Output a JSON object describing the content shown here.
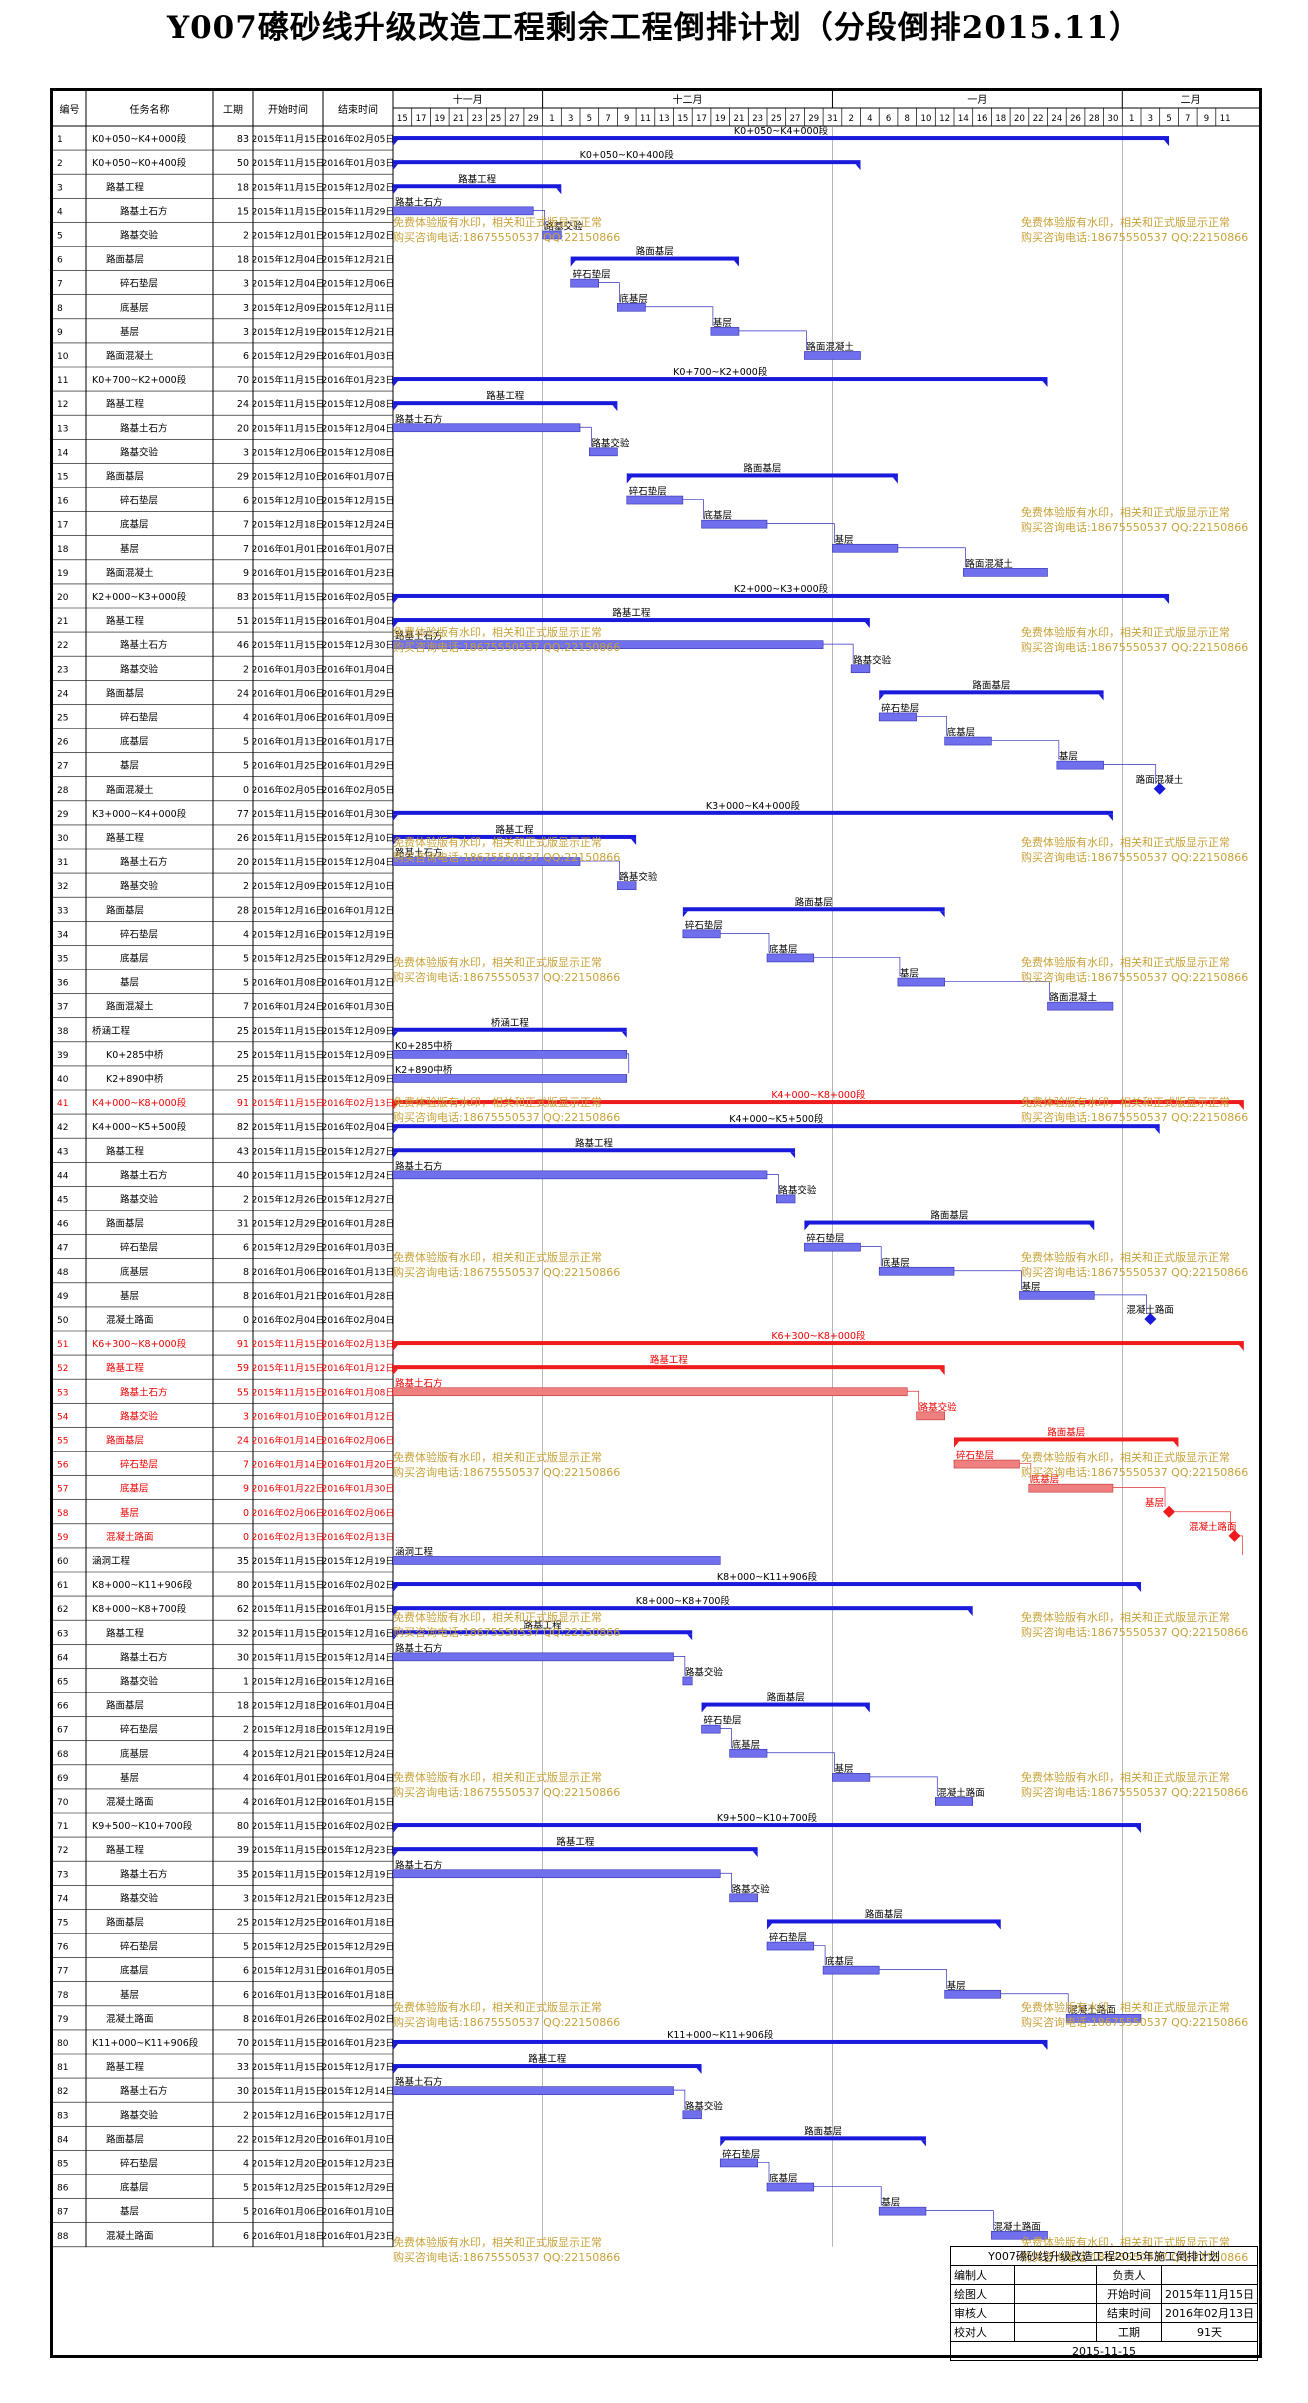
{
  "title": "Y007礤砂线升级改造工程剩余工程倒排计划（分段倒排2015.11）",
  "headers": {
    "id": "编号",
    "name": "任务名称",
    "dur": "工期",
    "start": "开始时间",
    "end": "结束时间"
  },
  "months": [
    {
      "label": "十一月",
      "date": "2015-11-01"
    },
    {
      "label": "十二月",
      "date": "2015-12-01"
    },
    {
      "label": "一月",
      "date": "2016-01-01"
    },
    {
      "label": "二月",
      "date": "2016-02-01"
    }
  ],
  "day_labels": [
    "15",
    "17",
    "19",
    "21",
    "23",
    "25",
    "27",
    "29",
    "1",
    "3",
    "5",
    "7",
    "9",
    "11",
    "13",
    "15",
    "17",
    "19",
    "21",
    "23",
    "25",
    "27",
    "29",
    "31",
    "2",
    "4",
    "6",
    "8",
    "10",
    "12",
    "14",
    "16",
    "18",
    "20",
    "22",
    "24",
    "26",
    "28",
    "30",
    "1",
    "3",
    "5",
    "7",
    "9",
    "11"
  ],
  "watermark": {
    "line1": "免费体验版有水印，相关和正式版显示正常",
    "line2": "购买咨询电话:18675550537 QQ:22150866"
  },
  "colors": {
    "summary": "#1a1adc",
    "task": "#7070ee",
    "summary_red": "#ee1c1c",
    "task_red": "#f08080",
    "watermark": "#c8a23a"
  },
  "tasks": [
    {
      "id": "1",
      "name": "K0+050~K4+000段",
      "indent": 0,
      "type": "summary",
      "dur": "83",
      "start": "2015年11月15日",
      "end": "2016年02月05日",
      "red": false
    },
    {
      "id": "2",
      "name": "K0+050~K0+400段",
      "indent": 0,
      "type": "summary",
      "dur": "50",
      "start": "2015年11月15日",
      "end": "2016年01月03日",
      "red": false
    },
    {
      "id": "3",
      "name": "路基工程",
      "indent": 1,
      "type": "summary",
      "dur": "18",
      "start": "2015年11月15日",
      "end": "2015年12月02日",
      "red": false
    },
    {
      "id": "4",
      "name": "路基土石方",
      "indent": 2,
      "type": "task",
      "dur": "15",
      "start": "2015年11月15日",
      "end": "2015年11月29日",
      "red": false
    },
    {
      "id": "5",
      "name": "路基交验",
      "indent": 2,
      "type": "task",
      "dur": "2",
      "start": "2015年12月01日",
      "end": "2015年12月02日",
      "red": false
    },
    {
      "id": "6",
      "name": "路面基层",
      "indent": 1,
      "type": "summary",
      "dur": "18",
      "start": "2015年12月04日",
      "end": "2015年12月21日",
      "red": false
    },
    {
      "id": "7",
      "name": "碎石垫层",
      "indent": 2,
      "type": "task",
      "dur": "3",
      "start": "2015年12月04日",
      "end": "2015年12月06日",
      "red": false
    },
    {
      "id": "8",
      "name": "底基层",
      "indent": 2,
      "type": "task",
      "dur": "3",
      "start": "2015年12月09日",
      "end": "2015年12月11日",
      "red": false
    },
    {
      "id": "9",
      "name": "基层",
      "indent": 2,
      "type": "task",
      "dur": "3",
      "start": "2015年12月19日",
      "end": "2015年12月21日",
      "red": false
    },
    {
      "id": "10",
      "name": "路面混凝土",
      "indent": 1,
      "type": "task",
      "dur": "6",
      "start": "2015年12月29日",
      "end": "2016年01月03日",
      "red": false
    },
    {
      "id": "11",
      "name": "K0+700~K2+000段",
      "indent": 0,
      "type": "summary",
      "dur": "70",
      "start": "2015年11月15日",
      "end": "2016年01月23日",
      "red": false
    },
    {
      "id": "12",
      "name": "路基工程",
      "indent": 1,
      "type": "summary",
      "dur": "24",
      "start": "2015年11月15日",
      "end": "2015年12月08日",
      "red": false
    },
    {
      "id": "13",
      "name": "路基土石方",
      "indent": 2,
      "type": "task",
      "dur": "20",
      "start": "2015年11月15日",
      "end": "2015年12月04日",
      "red": false
    },
    {
      "id": "14",
      "name": "路基交验",
      "indent": 2,
      "type": "task",
      "dur": "3",
      "start": "2015年12月06日",
      "end": "2015年12月08日",
      "red": false
    },
    {
      "id": "15",
      "name": "路面基层",
      "indent": 1,
      "type": "summary",
      "dur": "29",
      "start": "2015年12月10日",
      "end": "2016年01月07日",
      "red": false
    },
    {
      "id": "16",
      "name": "碎石垫层",
      "indent": 2,
      "type": "task",
      "dur": "6",
      "start": "2015年12月10日",
      "end": "2015年12月15日",
      "red": false
    },
    {
      "id": "17",
      "name": "底基层",
      "indent": 2,
      "type": "task",
      "dur": "7",
      "start": "2015年12月18日",
      "end": "2015年12月24日",
      "red": false
    },
    {
      "id": "18",
      "name": "基层",
      "indent": 2,
      "type": "task",
      "dur": "7",
      "start": "2016年01月01日",
      "end": "2016年01月07日",
      "red": false
    },
    {
      "id": "19",
      "name": "路面混凝土",
      "indent": 1,
      "type": "task",
      "dur": "9",
      "start": "2016年01月15日",
      "end": "2016年01月23日",
      "red": false
    },
    {
      "id": "20",
      "name": "K2+000~K3+000段",
      "indent": 0,
      "type": "summary",
      "dur": "83",
      "start": "2015年11月15日",
      "end": "2016年02月05日",
      "red": false
    },
    {
      "id": "21",
      "name": "路基工程",
      "indent": 1,
      "type": "summary",
      "dur": "51",
      "start": "2015年11月15日",
      "end": "2016年01月04日",
      "red": false
    },
    {
      "id": "22",
      "name": "路基土石方",
      "indent": 2,
      "type": "task",
      "dur": "46",
      "start": "2015年11月15日",
      "end": "2015年12月30日",
      "red": false
    },
    {
      "id": "23",
      "name": "路基交验",
      "indent": 2,
      "type": "task",
      "dur": "2",
      "start": "2016年01月03日",
      "end": "2016年01月04日",
      "red": false
    },
    {
      "id": "24",
      "name": "路面基层",
      "indent": 1,
      "type": "summary",
      "dur": "24",
      "start": "2016年01月06日",
      "end": "2016年01月29日",
      "red": false
    },
    {
      "id": "25",
      "name": "碎石垫层",
      "indent": 2,
      "type": "task",
      "dur": "4",
      "start": "2016年01月06日",
      "end": "2016年01月09日",
      "red": false
    },
    {
      "id": "26",
      "name": "底基层",
      "indent": 2,
      "type": "task",
      "dur": "5",
      "start": "2016年01月13日",
      "end": "2016年01月17日",
      "red": false
    },
    {
      "id": "27",
      "name": "基层",
      "indent": 2,
      "type": "task",
      "dur": "5",
      "start": "2016年01月25日",
      "end": "2016年01月29日",
      "red": false
    },
    {
      "id": "28",
      "name": "路面混凝土",
      "indent": 1,
      "type": "milestone",
      "dur": "0",
      "start": "2016年02月05日",
      "end": "2016年02月05日",
      "red": false
    },
    {
      "id": "29",
      "name": "K3+000~K4+000段",
      "indent": 0,
      "type": "summary",
      "dur": "77",
      "start": "2015年11月15日",
      "end": "2016年01月30日",
      "red": false
    },
    {
      "id": "30",
      "name": "路基工程",
      "indent": 1,
      "type": "summary",
      "dur": "26",
      "start": "2015年11月15日",
      "end": "2015年12月10日",
      "red": false
    },
    {
      "id": "31",
      "name": "路基土石方",
      "indent": 2,
      "type": "task",
      "dur": "20",
      "start": "2015年11月15日",
      "end": "2015年12月04日",
      "red": false
    },
    {
      "id": "32",
      "name": "路基交验",
      "indent": 2,
      "type": "task",
      "dur": "2",
      "start": "2015年12月09日",
      "end": "2015年12月10日",
      "red": false
    },
    {
      "id": "33",
      "name": "路面基层",
      "indent": 1,
      "type": "summary",
      "dur": "28",
      "start": "2015年12月16日",
      "end": "2016年01月12日",
      "red": false
    },
    {
      "id": "34",
      "name": "碎石垫层",
      "indent": 2,
      "type": "task",
      "dur": "4",
      "start": "2015年12月16日",
      "end": "2015年12月19日",
      "red": false
    },
    {
      "id": "35",
      "name": "底基层",
      "indent": 2,
      "type": "task",
      "dur": "5",
      "start": "2015年12月25日",
      "end": "2015年12月29日",
      "red": false
    },
    {
      "id": "36",
      "name": "基层",
      "indent": 2,
      "type": "task",
      "dur": "5",
      "start": "2016年01月08日",
      "end": "2016年01月12日",
      "red": false
    },
    {
      "id": "37",
      "name": "路面混凝土",
      "indent": 1,
      "type": "task",
      "dur": "7",
      "start": "2016年01月24日",
      "end": "2016年01月30日",
      "red": false
    },
    {
      "id": "38",
      "name": "桥涵工程",
      "indent": 0,
      "type": "summary",
      "dur": "25",
      "start": "2015年11月15日",
      "end": "2015年12月09日",
      "red": false
    },
    {
      "id": "39",
      "name": "K0+285中桥",
      "indent": 1,
      "type": "task",
      "dur": "25",
      "start": "2015年11月15日",
      "end": "2015年12月09日",
      "red": false
    },
    {
      "id": "40",
      "name": "K2+890中桥",
      "indent": 1,
      "type": "task",
      "dur": "25",
      "start": "2015年11月15日",
      "end": "2015年12月09日",
      "red": false
    },
    {
      "id": "41",
      "name": "K4+000~K8+000段",
      "indent": 0,
      "type": "summary",
      "dur": "91",
      "start": "2015年11月15日",
      "end": "2016年02月13日",
      "red": true
    },
    {
      "id": "42",
      "name": "K4+000~K5+500段",
      "indent": 0,
      "type": "summary",
      "dur": "82",
      "start": "2015年11月15日",
      "end": "2016年02月04日",
      "red": false
    },
    {
      "id": "43",
      "name": "路基工程",
      "indent": 1,
      "type": "summary",
      "dur": "43",
      "start": "2015年11月15日",
      "end": "2015年12月27日",
      "red": false
    },
    {
      "id": "44",
      "name": "路基土石方",
      "indent": 2,
      "type": "task",
      "dur": "40",
      "start": "2015年11月15日",
      "end": "2015年12月24日",
      "red": false
    },
    {
      "id": "45",
      "name": "路基交验",
      "indent": 2,
      "type": "task",
      "dur": "2",
      "start": "2015年12月26日",
      "end": "2015年12月27日",
      "red": false
    },
    {
      "id": "46",
      "name": "路面基层",
      "indent": 1,
      "type": "summary",
      "dur": "31",
      "start": "2015年12月29日",
      "end": "2016年01月28日",
      "red": false
    },
    {
      "id": "47",
      "name": "碎石垫层",
      "indent": 2,
      "type": "task",
      "dur": "6",
      "start": "2015年12月29日",
      "end": "2016年01月03日",
      "red": false
    },
    {
      "id": "48",
      "name": "底基层",
      "indent": 2,
      "type": "task",
      "dur": "8",
      "start": "2016年01月06日",
      "end": "2016年01月13日",
      "red": false
    },
    {
      "id": "49",
      "name": "基层",
      "indent": 2,
      "type": "task",
      "dur": "8",
      "start": "2016年01月21日",
      "end": "2016年01月28日",
      "red": false
    },
    {
      "id": "50",
      "name": "混凝土路面",
      "indent": 1,
      "type": "milestone",
      "dur": "0",
      "start": "2016年02月04日",
      "end": "2016年02月04日",
      "red": false
    },
    {
      "id": "51",
      "name": "K6+300~K8+000段",
      "indent": 0,
      "type": "summary",
      "dur": "91",
      "start": "2015年11月15日",
      "end": "2016年02月13日",
      "red": true
    },
    {
      "id": "52",
      "name": "路基工程",
      "indent": 1,
      "type": "summary",
      "dur": "59",
      "start": "2015年11月15日",
      "end": "2016年01月12日",
      "red": true
    },
    {
      "id": "53",
      "name": "路基土石方",
      "indent": 2,
      "type": "task",
      "dur": "55",
      "start": "2015年11月15日",
      "end": "2016年01月08日",
      "red": true
    },
    {
      "id": "54",
      "name": "路基交验",
      "indent": 2,
      "type": "task",
      "dur": "3",
      "start": "2016年01月10日",
      "end": "2016年01月12日",
      "red": true
    },
    {
      "id": "55",
      "name": "路面基层",
      "indent": 1,
      "type": "summary",
      "dur": "24",
      "start": "2016年01月14日",
      "end": "2016年02月06日",
      "red": true
    },
    {
      "id": "56",
      "name": "碎石垫层",
      "indent": 2,
      "type": "task",
      "dur": "7",
      "start": "2016年01月14日",
      "end": "2016年01月20日",
      "red": true
    },
    {
      "id": "57",
      "name": "底基层",
      "indent": 2,
      "type": "task",
      "dur": "9",
      "start": "2016年01月22日",
      "end": "2016年01月30日",
      "red": true
    },
    {
      "id": "58",
      "name": "基层",
      "indent": 2,
      "type": "milestone",
      "dur": "0",
      "start": "2016年02月06日",
      "end": "2016年02月06日",
      "red": true
    },
    {
      "id": "59",
      "name": "混凝土路面",
      "indent": 1,
      "type": "milestone",
      "dur": "0",
      "start": "2016年02月13日",
      "end": "2016年02月13日",
      "red": true
    },
    {
      "id": "60",
      "name": "涵洞工程",
      "indent": 0,
      "type": "task",
      "dur": "35",
      "start": "2015年11月15日",
      "end": "2015年12月19日",
      "red": false
    },
    {
      "id": "61",
      "name": "K8+000~K11+906段",
      "indent": 0,
      "type": "summary",
      "dur": "80",
      "start": "2015年11月15日",
      "end": "2016年02月02日",
      "red": false
    },
    {
      "id": "62",
      "name": "K8+000~K8+700段",
      "indent": 0,
      "type": "summary",
      "dur": "62",
      "start": "2015年11月15日",
      "end": "2016年01月15日",
      "red": false
    },
    {
      "id": "63",
      "name": "路基工程",
      "indent": 1,
      "type": "summary",
      "dur": "32",
      "start": "2015年11月15日",
      "end": "2015年12月16日",
      "red": false
    },
    {
      "id": "64",
      "name": "路基土石方",
      "indent": 2,
      "type": "task",
      "dur": "30",
      "start": "2015年11月15日",
      "end": "2015年12月14日",
      "red": false
    },
    {
      "id": "65",
      "name": "路基交验",
      "indent": 2,
      "type": "task",
      "dur": "1",
      "start": "2015年12月16日",
      "end": "2015年12月16日",
      "red": false
    },
    {
      "id": "66",
      "name": "路面基层",
      "indent": 1,
      "type": "summary",
      "dur": "18",
      "start": "2015年12月18日",
      "end": "2016年01月04日",
      "red": false
    },
    {
      "id": "67",
      "name": "碎石垫层",
      "indent": 2,
      "type": "task",
      "dur": "2",
      "start": "2015年12月18日",
      "end": "2015年12月19日",
      "red": false
    },
    {
      "id": "68",
      "name": "底基层",
      "indent": 2,
      "type": "task",
      "dur": "4",
      "start": "2015年12月21日",
      "end": "2015年12月24日",
      "red": false
    },
    {
      "id": "69",
      "name": "基层",
      "indent": 2,
      "type": "task",
      "dur": "4",
      "start": "2016年01月01日",
      "end": "2016年01月04日",
      "red": false
    },
    {
      "id": "70",
      "name": "混凝土路面",
      "indent": 1,
      "type": "task",
      "dur": "4",
      "start": "2016年01月12日",
      "end": "2016年01月15日",
      "red": false
    },
    {
      "id": "71",
      "name": "K9+500~K10+700段",
      "indent": 0,
      "type": "summary",
      "dur": "80",
      "start": "2015年11月15日",
      "end": "2016年02月02日",
      "red": false
    },
    {
      "id": "72",
      "name": "路基工程",
      "indent": 1,
      "type": "summary",
      "dur": "39",
      "start": "2015年11月15日",
      "end": "2015年12月23日",
      "red": false
    },
    {
      "id": "73",
      "name": "路基土石方",
      "indent": 2,
      "type": "task",
      "dur": "35",
      "start": "2015年11月15日",
      "end": "2015年12月19日",
      "red": false
    },
    {
      "id": "74",
      "name": "路基交验",
      "indent": 2,
      "type": "task",
      "dur": "3",
      "start": "2015年12月21日",
      "end": "2015年12月23日",
      "red": false
    },
    {
      "id": "75",
      "name": "路面基层",
      "indent": 1,
      "type": "summary",
      "dur": "25",
      "start": "2015年12月25日",
      "end": "2016年01月18日",
      "red": false
    },
    {
      "id": "76",
      "name": "碎石垫层",
      "indent": 2,
      "type": "task",
      "dur": "5",
      "start": "2015年12月25日",
      "end": "2015年12月29日",
      "red": false
    },
    {
      "id": "77",
      "name": "底基层",
      "indent": 2,
      "type": "task",
      "dur": "6",
      "start": "2015年12月31日",
      "end": "2016年01月05日",
      "red": false
    },
    {
      "id": "78",
      "name": "基层",
      "indent": 2,
      "type": "task",
      "dur": "6",
      "start": "2016年01月13日",
      "end": "2016年01月18日",
      "red": false
    },
    {
      "id": "79",
      "name": "混凝土路面",
      "indent": 1,
      "type": "task",
      "dur": "8",
      "start": "2016年01月26日",
      "end": "2016年02月02日",
      "red": false
    },
    {
      "id": "80",
      "name": "K11+000~K11+906段",
      "indent": 0,
      "type": "summary",
      "dur": "70",
      "start": "2015年11月15日",
      "end": "2016年01月23日",
      "red": false
    },
    {
      "id": "81",
      "name": "路基工程",
      "indent": 1,
      "type": "summary",
      "dur": "33",
      "start": "2015年11月15日",
      "end": "2015年12月17日",
      "red": false
    },
    {
      "id": "82",
      "name": "路基土石方",
      "indent": 2,
      "type": "task",
      "dur": "30",
      "start": "2015年11月15日",
      "end": "2015年12月14日",
      "red": false
    },
    {
      "id": "83",
      "name": "路基交验",
      "indent": 2,
      "type": "task",
      "dur": "2",
      "start": "2015年12月16日",
      "end": "2015年12月17日",
      "red": false
    },
    {
      "id": "84",
      "name": "路面基层",
      "indent": 1,
      "type": "summary",
      "dur": "22",
      "start": "2015年12月20日",
      "end": "2016年01月10日",
      "red": false
    },
    {
      "id": "85",
      "name": "碎石垫层",
      "indent": 2,
      "type": "task",
      "dur": "4",
      "start": "2015年12月20日",
      "end": "2015年12月23日",
      "red": false
    },
    {
      "id": "86",
      "name": "底基层",
      "indent": 2,
      "type": "task",
      "dur": "5",
      "start": "2015年12月25日",
      "end": "2015年12月29日",
      "red": false
    },
    {
      "id": "87",
      "name": "基层",
      "indent": 2,
      "type": "task",
      "dur": "5",
      "start": "2016年01月06日",
      "end": "2016年01月10日",
      "red": false
    },
    {
      "id": "88",
      "name": "混凝土路面",
      "indent": 1,
      "type": "task",
      "dur": "6",
      "start": "2016年01月18日",
      "end": "2016年01月23日",
      "red": false
    }
  ],
  "title_block": {
    "plan_title": "Y007礤砂线升级改造工程2015年施工倒排计划",
    "compiler_label": "编制人",
    "leader_label": "负责人",
    "drawer_label": "绘图人",
    "start_label": "开始时间",
    "start_value": "2015年11月15日",
    "reviewer_label": "审核人",
    "end_label": "结束时间",
    "end_value": "2016年02月13日",
    "checker_label": "校对人",
    "period_label": "工期",
    "period_value": "91天",
    "date": "2015-11-15"
  }
}
